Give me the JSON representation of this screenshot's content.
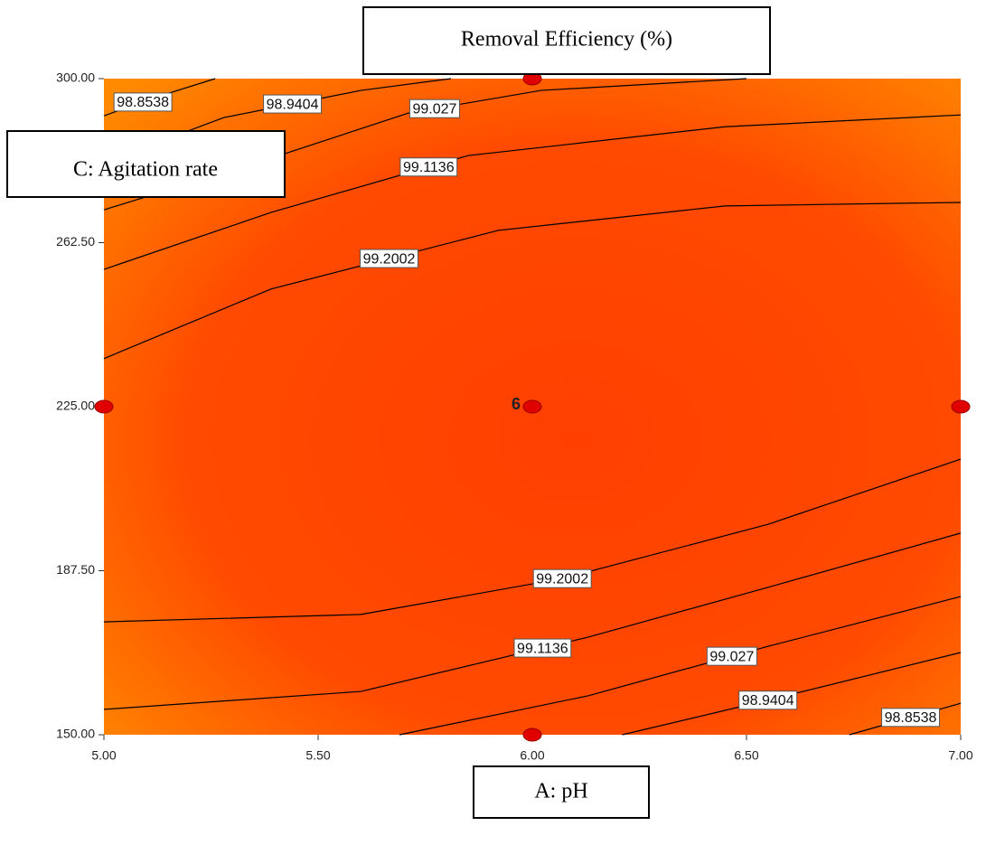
{
  "chart_data": {
    "type": "contour",
    "title": "Removal Efficiency (%)",
    "x_label": "A: pH",
    "y_label": "C: Agitation rate",
    "xlim": [
      5,
      7
    ],
    "ylim": [
      150,
      300
    ],
    "xticks": [
      {
        "value": 5,
        "label": "5.00"
      },
      {
        "value": 5.5,
        "label": "5.50"
      },
      {
        "value": 6,
        "label": "6.00"
      },
      {
        "value": 6.5,
        "label": "6.50"
      },
      {
        "value": 7,
        "label": "7.00"
      }
    ],
    "yticks": [
      {
        "value": 150,
        "label": "150.00"
      },
      {
        "value": 187.5,
        "label": "187.50"
      },
      {
        "value": 225,
        "label": "225.00"
      },
      {
        "value": 262.5,
        "label": "262.50"
      },
      {
        "value": 300,
        "label": "300.00"
      }
    ],
    "contours": [
      {
        "level": 98.8538,
        "x": [
          5,
          5.13,
          5.26
        ],
        "y": [
          291.5,
          296,
          300
        ]
      },
      {
        "level": 98.9404,
        "x": [
          5,
          5.28,
          5.6,
          5.81
        ],
        "y": [
          280.8,
          291.1,
          297.3,
          300
        ]
      },
      {
        "level": 99.027,
        "x": [
          5,
          5.39,
          5.71,
          6.02,
          6.5
        ],
        "y": [
          270,
          281.8,
          292.1,
          297.3,
          300
        ]
      },
      {
        "level": 99.1136,
        "x": [
          5,
          5.39,
          5.85,
          6.45,
          7
        ],
        "y": [
          256.4,
          269.4,
          282.4,
          289,
          291.7
        ]
      },
      {
        "level": 99.2002,
        "x": [
          5,
          5.39,
          5.92,
          6.45,
          7
        ],
        "y": [
          236,
          251.9,
          265.3,
          270.9,
          271.7
        ]
      },
      {
        "level": 99.2002,
        "x": [
          5,
          5.6,
          6.07,
          6.55,
          7
        ],
        "y": [
          175.8,
          177.5,
          185.7,
          198.1,
          213
        ]
      },
      {
        "level": 99.1136,
        "x": [
          5,
          5.6,
          6.13,
          6.55,
          7
        ],
        "y": [
          155.8,
          159.9,
          172.3,
          183.7,
          196.1
        ]
      },
      {
        "level": 99.027,
        "x": [
          5.69,
          6.13,
          6.55,
          7
        ],
        "y": [
          150,
          158.9,
          170.2,
          181.6
        ]
      },
      {
        "level": 98.9404,
        "x": [
          6.21,
          6.55,
          7
        ],
        "y": [
          150,
          157.9,
          168.8
        ]
      },
      {
        "level": 98.8538,
        "x": [
          6.74,
          7
        ],
        "y": [
          150,
          157.2
        ]
      }
    ],
    "design_points": [
      {
        "x": 5,
        "y": 225
      },
      {
        "x": 6,
        "y": 225,
        "count": 6
      },
      {
        "x": 7,
        "y": 225
      },
      {
        "x": 6,
        "y": 300
      },
      {
        "x": 6,
        "y": 150
      }
    ],
    "point_color": "#e00000"
  }
}
